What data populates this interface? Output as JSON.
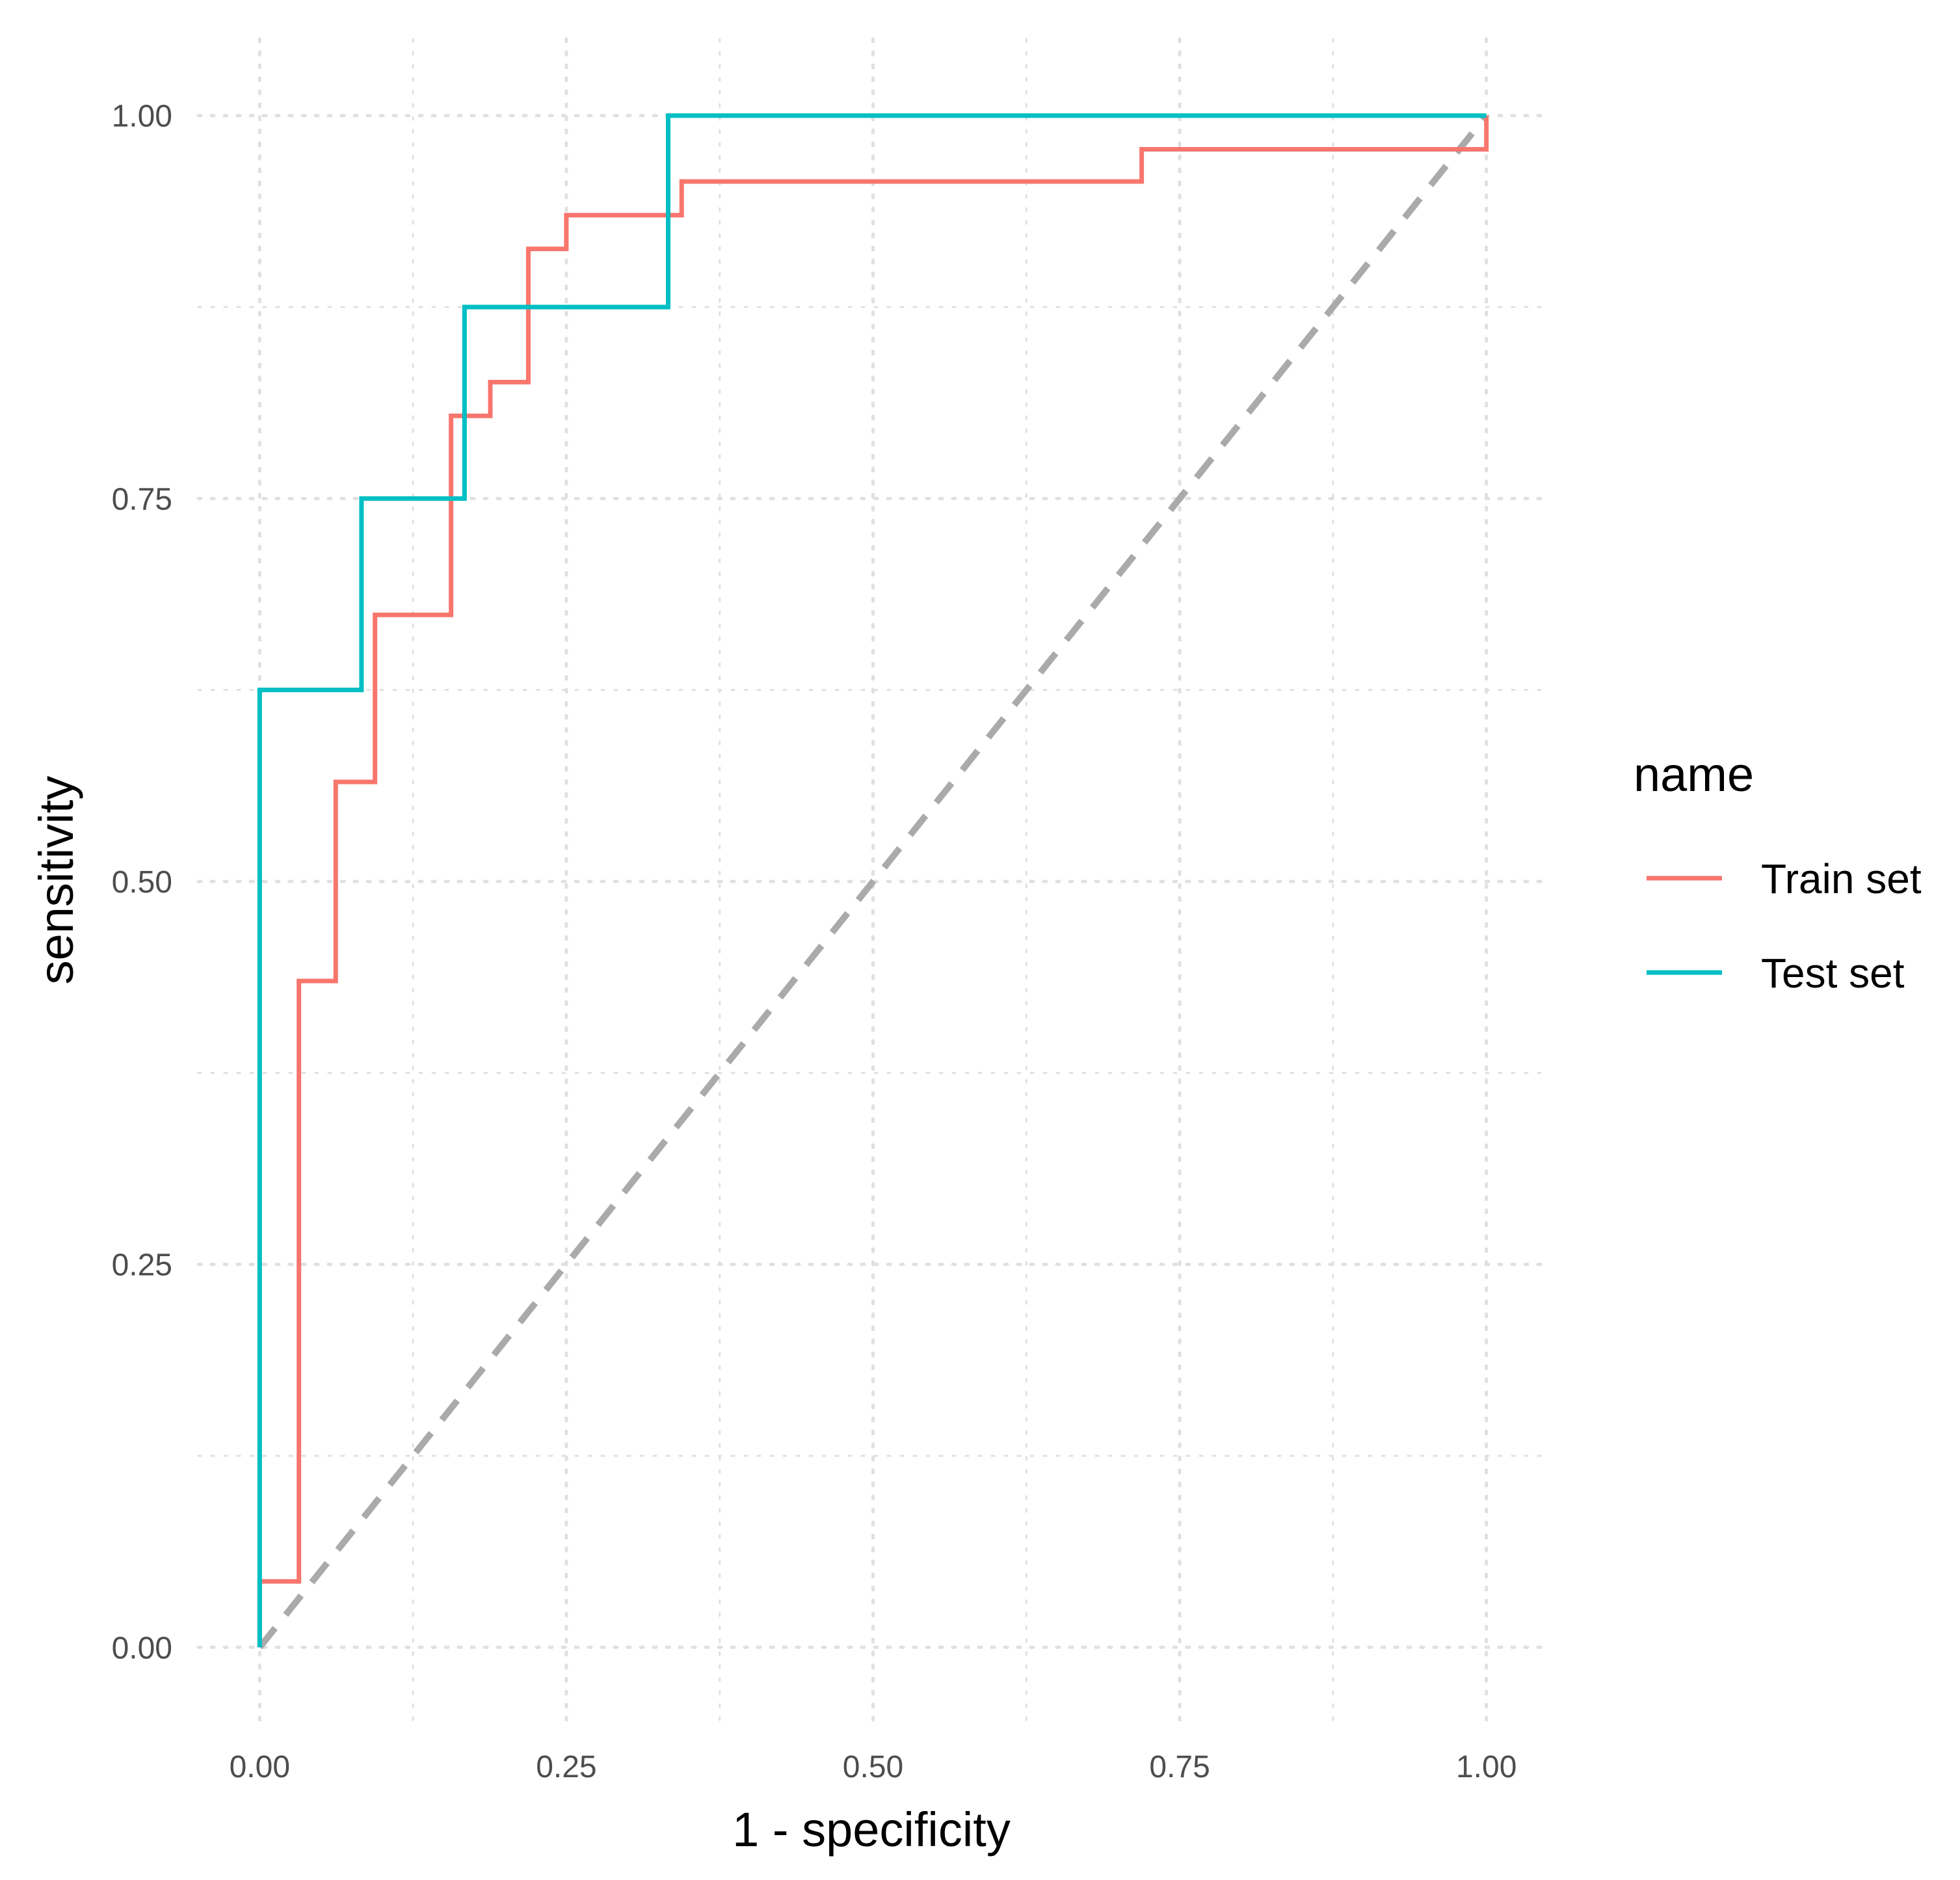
{
  "chart_data": {
    "type": "line",
    "title": "",
    "xlabel": "1 - specificity",
    "ylabel": "sensitivity",
    "xlim": [
      -0.05,
      1.05
    ],
    "ylim": [
      -0.05,
      1.05
    ],
    "x_ticks": [
      0,
      0.25,
      0.5,
      0.75,
      1
    ],
    "x_tick_labels": [
      "0.00",
      "0.25",
      "0.50",
      "0.75",
      "1.00"
    ],
    "y_ticks": [
      0,
      0.25,
      0.5,
      0.75,
      1
    ],
    "y_tick_labels": [
      "0.00",
      "0.25",
      "0.50",
      "0.75",
      "1.00"
    ],
    "grid": "dotted",
    "legend": {
      "title": "name",
      "position": "right"
    },
    "series": [
      {
        "name": "Train set",
        "color": "#F8766D",
        "step": true,
        "points": [
          [
            0.0,
            0.0
          ],
          [
            0.0,
            0.043
          ],
          [
            0.032,
            0.043
          ],
          [
            0.032,
            0.435
          ],
          [
            0.062,
            0.435
          ],
          [
            0.062,
            0.565
          ],
          [
            0.094,
            0.565
          ],
          [
            0.094,
            0.674
          ],
          [
            0.156,
            0.674
          ],
          [
            0.156,
            0.804
          ],
          [
            0.188,
            0.804
          ],
          [
            0.188,
            0.826
          ],
          [
            0.219,
            0.826
          ],
          [
            0.219,
            0.913
          ],
          [
            0.25,
            0.913
          ],
          [
            0.25,
            0.935
          ],
          [
            0.344,
            0.935
          ],
          [
            0.344,
            0.957
          ],
          [
            0.719,
            0.957
          ],
          [
            0.719,
            0.978
          ],
          [
            1.0,
            0.978
          ],
          [
            1.0,
            1.0
          ]
        ]
      },
      {
        "name": "Test set",
        "color": "#00BFC4",
        "step": true,
        "points": [
          [
            0.0,
            0.0
          ],
          [
            0.0,
            0.625
          ],
          [
            0.083,
            0.625
          ],
          [
            0.083,
            0.75
          ],
          [
            0.167,
            0.75
          ],
          [
            0.167,
            0.875
          ],
          [
            0.333,
            0.875
          ],
          [
            0.333,
            1.0
          ],
          [
            1.0,
            1.0
          ]
        ]
      }
    ],
    "reference_line": {
      "from": [
        0,
        0
      ],
      "to": [
        1,
        1
      ],
      "color": "#AAAAAA",
      "style": "dashed"
    }
  }
}
